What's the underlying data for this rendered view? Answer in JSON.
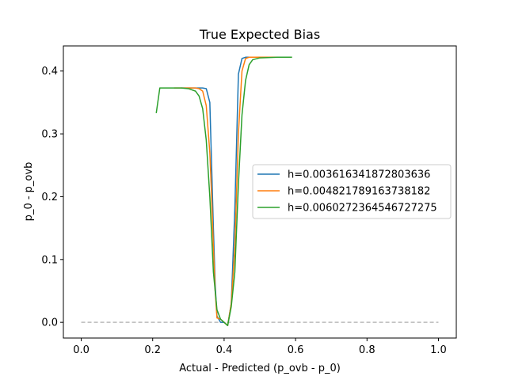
{
  "chart_data": {
    "type": "line",
    "title": "True Expected Bias",
    "xlabel": "Actual - Predicted (p_ovb - p_0)",
    "ylabel": "p_0 - p_ovb",
    "xlim": [
      -0.05,
      1.05
    ],
    "ylim": [
      -0.025,
      0.44
    ],
    "x_ticks": [
      0.0,
      0.2,
      0.4,
      0.6,
      0.8,
      1.0
    ],
    "x_tick_labels": [
      "0.0",
      "0.2",
      "0.4",
      "0.6",
      "0.8",
      "1.0"
    ],
    "y_ticks": [
      0.0,
      0.1,
      0.2,
      0.3,
      0.4
    ],
    "y_tick_labels": [
      "0.0",
      "0.1",
      "0.2",
      "0.3",
      "0.4"
    ],
    "grid": false,
    "legend_position": "center-right",
    "reference_line": {
      "x": [
        0.0,
        1.0
      ],
      "y": [
        0.0,
        0.0
      ],
      "color": "#bbbbbb",
      "style": "dashed"
    },
    "series": [
      {
        "name": "h=0.003616341872803636",
        "color": "#1f77b4",
        "x": [
          0.28,
          0.3,
          0.32,
          0.34,
          0.35,
          0.36,
          0.365,
          0.37,
          0.375,
          0.38,
          0.39,
          0.4,
          0.41,
          0.42,
          0.43,
          0.44,
          0.45,
          0.46,
          0.47,
          0.5,
          0.55,
          0.59
        ],
        "y": [
          0.373,
          0.373,
          0.373,
          0.373,
          0.372,
          0.35,
          0.25,
          0.15,
          0.06,
          0.01,
          0.0,
          0.0,
          -0.005,
          0.03,
          0.18,
          0.395,
          0.42,
          0.422,
          0.422,
          0.422,
          0.422,
          0.422
        ]
      },
      {
        "name": "h=0.004821789163738182",
        "color": "#ff7f0e",
        "x": [
          0.26,
          0.3,
          0.32,
          0.33,
          0.34,
          0.35,
          0.36,
          0.365,
          0.37,
          0.375,
          0.38,
          0.39,
          0.4,
          0.41,
          0.42,
          0.43,
          0.44,
          0.45,
          0.46,
          0.47,
          0.5,
          0.55,
          0.59
        ],
        "y": [
          0.373,
          0.373,
          0.373,
          0.372,
          0.368,
          0.345,
          0.27,
          0.2,
          0.12,
          0.05,
          0.007,
          0.005,
          0.0,
          -0.005,
          0.03,
          0.12,
          0.3,
          0.4,
          0.42,
          0.422,
          0.422,
          0.422,
          0.422
        ]
      },
      {
        "name": "h=0.0060272364546727275",
        "color": "#2ca02c",
        "x": [
          0.21,
          0.22,
          0.25,
          0.28,
          0.3,
          0.32,
          0.33,
          0.34,
          0.35,
          0.36,
          0.365,
          0.37,
          0.38,
          0.39,
          0.4,
          0.41,
          0.42,
          0.43,
          0.44,
          0.45,
          0.46,
          0.47,
          0.48,
          0.5,
          0.55,
          0.59
        ],
        "y": [
          0.333,
          0.373,
          0.373,
          0.373,
          0.372,
          0.368,
          0.36,
          0.34,
          0.29,
          0.2,
          0.14,
          0.08,
          0.02,
          0.005,
          0.0,
          -0.005,
          0.025,
          0.08,
          0.22,
          0.33,
          0.385,
          0.41,
          0.418,
          0.421,
          0.422,
          0.422
        ]
      }
    ]
  }
}
